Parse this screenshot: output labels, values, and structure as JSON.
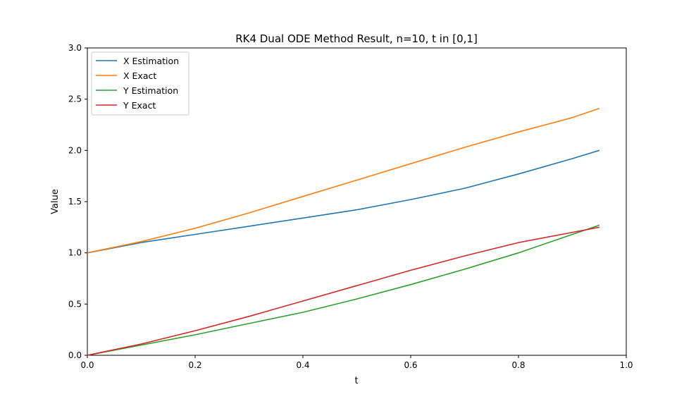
{
  "chart_data": {
    "type": "line",
    "title": "RK4 Dual ODE Method Result, n=10, t in [0,1]",
    "xlabel": "t",
    "ylabel": "Value",
    "xlim": [
      0.0,
      1.0
    ],
    "ylim": [
      0.0,
      3.0
    ],
    "xticks": [
      "0.0",
      "0.2",
      "0.4",
      "0.6",
      "0.8",
      "1.0"
    ],
    "yticks": [
      "0.0",
      "0.5",
      "1.0",
      "1.5",
      "2.0",
      "2.5",
      "3.0"
    ],
    "grid": false,
    "legend_position": "top-left",
    "x": [
      0.0,
      0.1,
      0.2,
      0.3,
      0.4,
      0.5,
      0.6,
      0.7,
      0.8,
      0.9,
      0.95
    ],
    "series": [
      {
        "name": "X Estimation",
        "color": "#1f77b4",
        "values": [
          1.0,
          1.1,
          1.18,
          1.26,
          1.34,
          1.42,
          1.52,
          1.63,
          1.77,
          1.92,
          2.0
        ]
      },
      {
        "name": "X Exact",
        "color": "#ff7f0e",
        "values": [
          1.0,
          1.11,
          1.24,
          1.39,
          1.55,
          1.71,
          1.87,
          2.03,
          2.18,
          2.32,
          2.41
        ]
      },
      {
        "name": "Y Estimation",
        "color": "#2ca02c",
        "values": [
          0.0,
          0.1,
          0.2,
          0.31,
          0.42,
          0.55,
          0.69,
          0.84,
          1.0,
          1.18,
          1.27
        ]
      },
      {
        "name": "Y Exact",
        "color": "#d62728",
        "values": [
          0.0,
          0.11,
          0.24,
          0.38,
          0.53,
          0.68,
          0.83,
          0.97,
          1.1,
          1.2,
          1.25
        ]
      }
    ]
  }
}
